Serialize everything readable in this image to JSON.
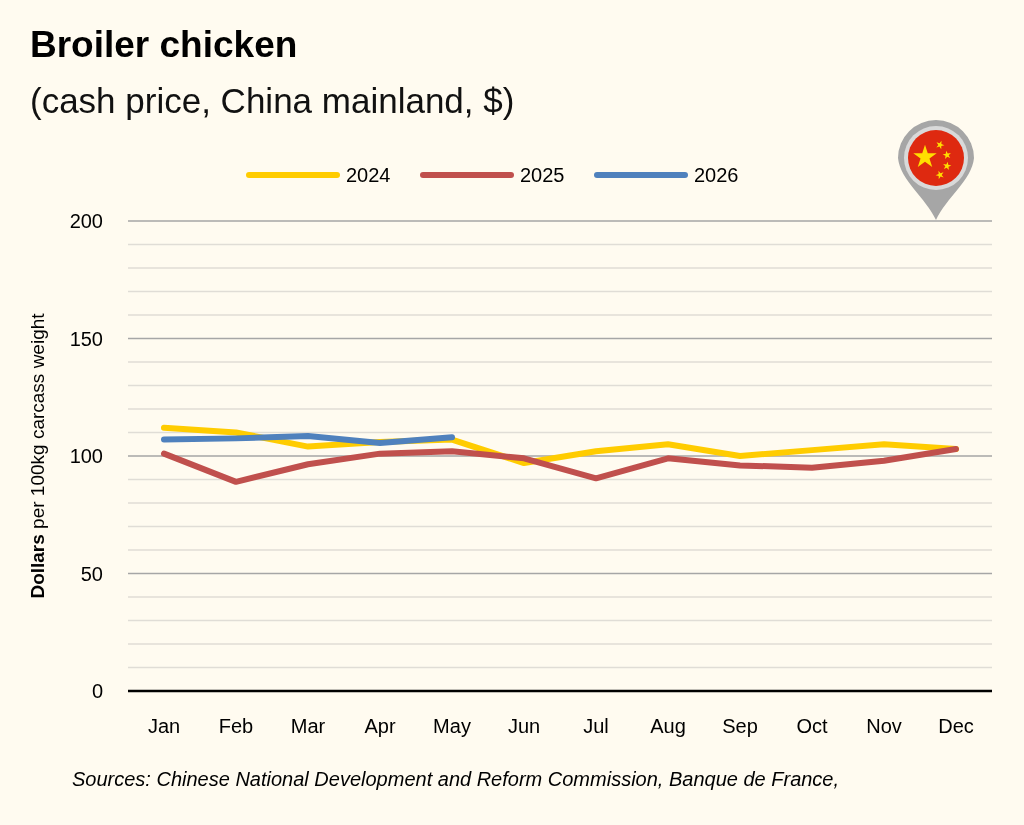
{
  "chart_data": {
    "type": "line",
    "title": "Broiler chicken",
    "subtitle": "(cash price, China mainland, $)",
    "ylabel": "Dollars per 100kg carcass weight",
    "categories": [
      "Jan",
      "Feb",
      "Mar",
      "Apr",
      "May",
      "Jun",
      "Jul",
      "Aug",
      "Sep",
      "Oct",
      "Nov",
      "Dec"
    ],
    "series": [
      {
        "name": "2024",
        "color": "#ffcc00",
        "values": [
          112,
          110,
          104,
          106,
          107,
          97,
          102,
          105,
          100,
          102.5,
          105,
          103
        ]
      },
      {
        "name": "2025",
        "color": "#c0504d",
        "values": [
          101,
          89,
          96.5,
          101,
          102,
          99,
          90.5,
          99,
          96,
          95,
          98,
          103
        ]
      },
      {
        "name": "2026",
        "color": "#4f81bd",
        "values": [
          107,
          107.5,
          108.5,
          105.5,
          108,
          null,
          null,
          null,
          null,
          null,
          null,
          null
        ]
      }
    ],
    "ylim": [
      0,
      200
    ],
    "yticks": [
      0,
      {
        "value": 10,
        "label": null
      },
      {
        "value": 20,
        "label": null
      },
      {
        "value": 30,
        "label": null
      },
      {
        "value": 40,
        "label": null
      },
      50,
      {
        "value": 60,
        "label": null
      },
      {
        "value": 70,
        "label": null
      },
      {
        "value": 80,
        "label": null
      },
      {
        "value": 90,
        "label": null
      },
      100,
      {
        "value": 110,
        "label": null
      },
      {
        "value": 120,
        "label": null
      },
      {
        "value": 130,
        "label": null
      },
      {
        "value": 140,
        "label": null
      },
      150,
      {
        "value": 160,
        "label": null
      },
      {
        "value": 170,
        "label": null
      },
      {
        "value": 180,
        "label": null
      },
      {
        "value": 190,
        "label": null
      },
      200
    ],
    "grid": "y",
    "legend": "top",
    "annotations": [
      "Sources: Chinese National Development and Reform Commission, Banque de France,"
    ]
  }
}
